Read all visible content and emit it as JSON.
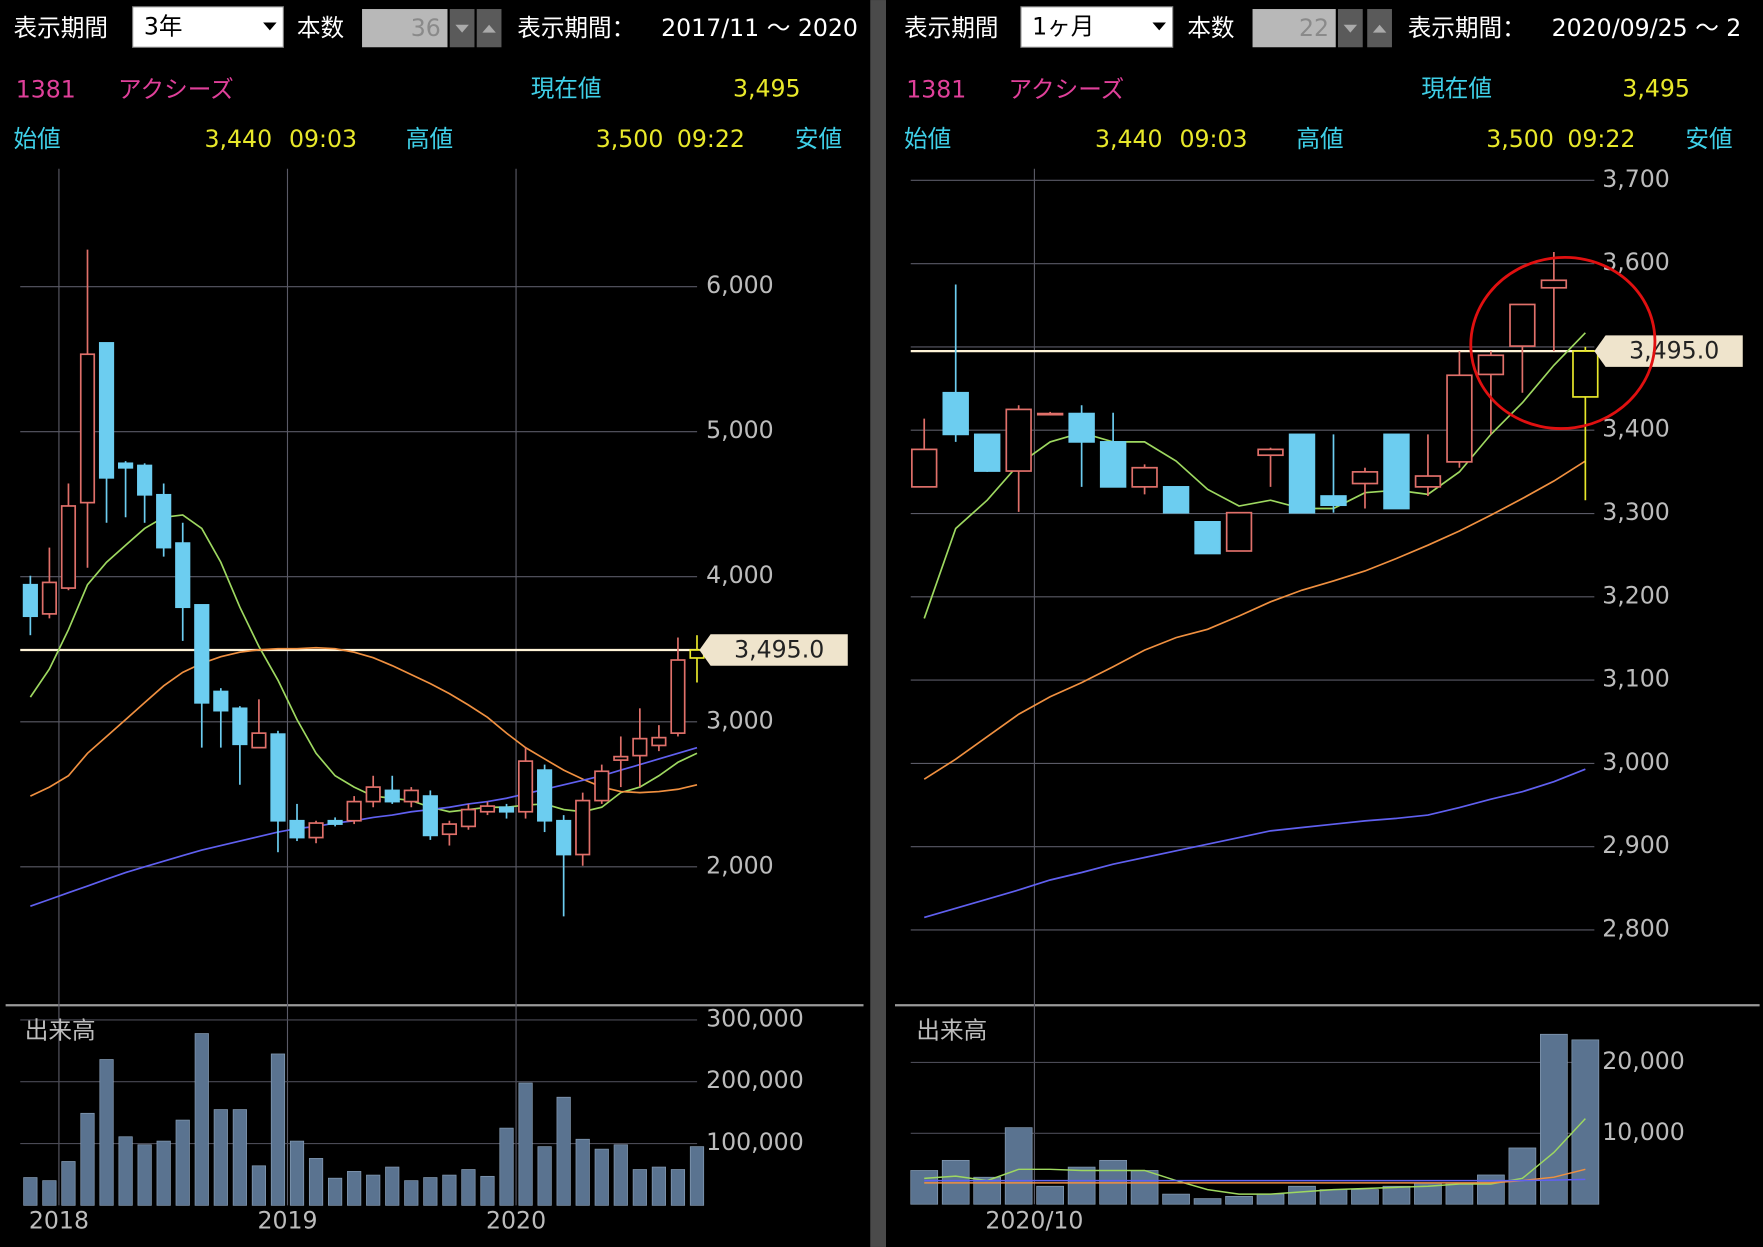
{
  "panels": [
    {
      "toolbar": {
        "period_label": "表示期間",
        "period": "3年",
        "count_label": "本数",
        "count": "36",
        "range_label": "表示期間：",
        "range": "2017/11 ～ 2020"
      },
      "quote": {
        "code": "1381",
        "name": "アクシーズ",
        "current_label": "現在値",
        "current": "3,495",
        "open_label": "始値",
        "open": "3,440",
        "open_time": "09:03",
        "high_label": "高値",
        "high": "3,500",
        "high_time": "09:22",
        "low_label": "安値"
      }
    },
    {
      "toolbar": {
        "period_label": "表示期間",
        "period": "1ヶ月",
        "count_label": "本数",
        "count": "22",
        "range_label": "表示期間：",
        "range": "2020/09/25 ～ 2"
      },
      "quote": {
        "code": "1381",
        "name": "アクシーズ",
        "current_label": "現在値",
        "current": "3,495",
        "open_label": "始値",
        "open": "3,440",
        "open_time": "09:03",
        "high_label": "高値",
        "high": "3,500",
        "high_time": "09:22",
        "low_label": "安値"
      }
    }
  ],
  "chart_data": [
    {
      "type": "candlestick",
      "categories": [
        null,
        null,
        "2018",
        null,
        null,
        null,
        null,
        null,
        null,
        null,
        null,
        null,
        null,
        null,
        "2019",
        null,
        null,
        null,
        null,
        null,
        null,
        null,
        null,
        null,
        null,
        null,
        "2020",
        null,
        null,
        null,
        null,
        null,
        null,
        null,
        null,
        null
      ],
      "open": [
        3945,
        3744,
        3922,
        4511,
        5612,
        4782,
        4767,
        4565,
        4232,
        3806,
        3209,
        3093,
        2822,
        2915,
        2318,
        2202,
        2318,
        2318,
        2450,
        2527,
        2450,
        2488,
        2225,
        2279,
        2380,
        2411,
        2380,
        2667,
        2318,
        2085,
        2457,
        2736,
        2767,
        2837,
        2922,
        3440
      ],
      "high": [
        4007,
        4201,
        4643,
        6255,
        5612,
        4797,
        4782,
        4643,
        4372,
        3806,
        3232,
        3108,
        3155,
        2938,
        2434,
        2318,
        2341,
        2488,
        2628,
        2628,
        2550,
        2527,
        2318,
        2434,
        2450,
        2434,
        2822,
        2705,
        2357,
        2512,
        2705,
        2899,
        3093,
        2977,
        3581,
        3597
      ],
      "low": [
        3597,
        3713,
        3907,
        4062,
        4372,
        4410,
        4372,
        4139,
        3558,
        2822,
        2822,
        2566,
        2822,
        2101,
        2178,
        2163,
        2279,
        2295,
        2411,
        2434,
        2411,
        2186,
        2147,
        2256,
        2357,
        2333,
        2333,
        2240,
        1659,
        2008,
        2434,
        2550,
        2550,
        2798,
        2899,
        3271
      ],
      "close": [
        3728,
        3961,
        4488,
        5534,
        4682,
        4751,
        4565,
        4201,
        3790,
        3131,
        3077,
        2845,
        2922,
        2318,
        2202,
        2302,
        2295,
        2450,
        2550,
        2450,
        2527,
        2217,
        2295,
        2395,
        2419,
        2380,
        2729,
        2318,
        2085,
        2457,
        2659,
        2760,
        2884,
        2891,
        3426,
        3495
      ],
      "up_color": "#e0706a",
      "down_color": "#6ccdf0",
      "last_color": "#e8e82a",
      "lines": [
        {
          "color": "#9ed860",
          "values": [
            3170,
            3364,
            3635,
            3945,
            4100,
            4217,
            4333,
            4410,
            4426,
            4333,
            4100,
            3790,
            3519,
            3287,
            3015,
            2783,
            2628,
            2550,
            2488,
            2473,
            2457,
            2411,
            2380,
            2395,
            2411,
            2411,
            2426,
            2434,
            2395,
            2380,
            2411,
            2512,
            2550,
            2628,
            2721,
            2783
          ]
        },
        {
          "color": "#f09040",
          "values": [
            2488,
            2550,
            2628,
            2783,
            2899,
            3015,
            3132,
            3248,
            3341,
            3403,
            3449,
            3480,
            3496,
            3504,
            3504,
            3511,
            3504,
            3480,
            3442,
            3387,
            3325,
            3263,
            3194,
            3116,
            3031,
            2922,
            2822,
            2744,
            2667,
            2605,
            2550,
            2519,
            2512,
            2519,
            2535,
            2566
          ]
        },
        {
          "color": "#6060f0",
          "values": [
            1729,
            1775,
            1822,
            1868,
            1915,
            1961,
            2000,
            2039,
            2078,
            2116,
            2147,
            2178,
            2209,
            2240,
            2264,
            2279,
            2302,
            2318,
            2341,
            2357,
            2380,
            2395,
            2411,
            2434,
            2450,
            2473,
            2504,
            2535,
            2566,
            2597,
            2628,
            2667,
            2705,
            2744,
            2783,
            2822
          ]
        }
      ],
      "current_price": {
        "value": 3495,
        "label": "3,495.0"
      },
      "ylim": [
        1054,
        6813
      ],
      "yticks": [
        {
          "value": 2000,
          "label": "2,000"
        },
        {
          "value": 3000,
          "label": "3,000"
        },
        {
          "value": 4000,
          "label": "4,000"
        },
        {
          "value": 5000,
          "label": "5,000"
        },
        {
          "value": 6000,
          "label": "6,000"
        }
      ],
      "grid": true
    },
    {
      "type": "bar",
      "title": "出来高",
      "color": "#5a7390",
      "values": [
        45000,
        40000,
        71000,
        149000,
        236000,
        111000,
        98000,
        104000,
        138000,
        278000,
        155000,
        155000,
        64000,
        245000,
        104000,
        76000,
        44000,
        55000,
        49000,
        62000,
        40000,
        45000,
        49000,
        58000,
        47000,
        125000,
        198000,
        95000,
        175000,
        107000,
        91000,
        98000,
        58000,
        62000,
        58000,
        95000
      ],
      "ylim": [
        0,
        322000
      ],
      "yticks": [
        {
          "value": 100000,
          "label": "100,000"
        },
        {
          "value": 200000,
          "label": "200,000"
        },
        {
          "value": 300000,
          "label": "300,000"
        }
      ],
      "grid": true
    },
    {
      "type": "candlestick",
      "categories": [
        null,
        null,
        null,
        null,
        "2020/10",
        null,
        null,
        null,
        null,
        null,
        null,
        null,
        null,
        null,
        null,
        null,
        null,
        null,
        null,
        null,
        null,
        null
      ],
      "open": [
        3332,
        3445,
        3395,
        3351,
        3420,
        3420,
        3386,
        3332,
        3332,
        3290,
        3255,
        3370,
        3395,
        3321,
        3336,
        3395,
        3332,
        3362,
        3467,
        3501,
        3571,
        3440
      ],
      "high": [
        3414,
        3575,
        3395,
        3430,
        3422,
        3430,
        3421,
        3359,
        3332,
        3290,
        3301,
        3379,
        3395,
        3395,
        3355,
        3395,
        3395,
        3495,
        3495,
        3551,
        3614,
        3500
      ],
      "low": [
        3332,
        3386,
        3350,
        3302,
        3418,
        3332,
        3332,
        3323,
        3301,
        3252,
        3255,
        3332,
        3301,
        3301,
        3306,
        3306,
        3321,
        3355,
        3395,
        3445,
        3495,
        3316
      ],
      "close": [
        3377,
        3395,
        3351,
        3425,
        3420,
        3386,
        3332,
        3355,
        3301,
        3252,
        3301,
        3377,
        3301,
        3310,
        3350,
        3306,
        3345,
        3466,
        3490,
        3551,
        3580,
        3495
      ],
      "up_color": "#e0706a",
      "down_color": "#6ccdf0",
      "last_color": "#e8e82a",
      "lines": [
        {
          "color": "#9ed860",
          "values": [
            3174,
            3282,
            3316,
            3359,
            3386,
            3397,
            3386,
            3386,
            3363,
            3329,
            3309,
            3316,
            3306,
            3306,
            3325,
            3328,
            3323,
            3350,
            3395,
            3433,
            3478,
            3517
          ]
        },
        {
          "color": "#f09040",
          "values": [
            2981,
            3005,
            3032,
            3059,
            3080,
            3097,
            3116,
            3136,
            3151,
            3161,
            3177,
            3194,
            3208,
            3219,
            3231,
            3246,
            3262,
            3279,
            3298,
            3318,
            3339,
            3363
          ]
        },
        {
          "color": "#6060f0",
          "values": [
            2815,
            2826,
            2837,
            2848,
            2860,
            2869,
            2879,
            2887,
            2895,
            2903,
            2911,
            2919,
            2923,
            2927,
            2931,
            2934,
            2938,
            2947,
            2957,
            2966,
            2978,
            2993
          ]
        }
      ],
      "current_price": {
        "value": 3495,
        "label": "3,495.0"
      },
      "ylim": [
        2711,
        3714
      ],
      "yticks": [
        {
          "value": 2800,
          "label": "2,800"
        },
        {
          "value": 2900,
          "label": "2,900"
        },
        {
          "value": 3000,
          "label": "3,000"
        },
        {
          "value": 3100,
          "label": "3,100"
        },
        {
          "value": 3200,
          "label": "3,200"
        },
        {
          "value": 3300,
          "label": "3,300"
        },
        {
          "value": 3400,
          "label": "3,400"
        },
        {
          "value": 3500,
          "label": "3,500"
        },
        {
          "value": 3600,
          "label": "3,600"
        },
        {
          "value": 3700,
          "label": "3,700"
        }
      ],
      "grid": true
    },
    {
      "type": "bar",
      "title": "出来高",
      "color": "#5a7390",
      "values": [
        4762,
        6190,
        3810,
        10794,
        2540,
        5238,
        6190,
        4762,
        1429,
        794,
        1111,
        1429,
        2540,
        2063,
        2063,
        2540,
        3016,
        3016,
        4127,
        7937,
        23968,
        23175
      ],
      "lines": [
        {
          "color": "#9ed860",
          "values": [
            3651,
            3968,
            3333,
            4921,
            4921,
            4762,
            4762,
            4762,
            3333,
            2063,
            1429,
            1429,
            1746,
            2063,
            2222,
            2381,
            2540,
            2857,
            2857,
            3651,
            7302,
            12063
          ]
        },
        {
          "color": "#f09040",
          "values": [
            3016,
            3016,
            3016,
            3016,
            3016,
            3016,
            3016,
            3016,
            3016,
            3016,
            3016,
            3016,
            3016,
            3016,
            3016,
            3016,
            3016,
            3016,
            3016,
            3333,
            3810,
            4921
          ]
        },
        {
          "color": "#6060f0",
          "values": [
            3333,
            3333,
            3333,
            3333,
            3333,
            3333,
            3333,
            3333,
            3333,
            3333,
            3333,
            3333,
            3333,
            3333,
            3333,
            3333,
            3333,
            3333,
            3333,
            3333,
            3400,
            3500
          ]
        }
      ],
      "ylim": [
        0,
        27900
      ],
      "yticks": [
        {
          "value": 10000,
          "label": "10,000"
        },
        {
          "value": 20000,
          "label": "20,000"
        }
      ],
      "grid": true
    }
  ]
}
